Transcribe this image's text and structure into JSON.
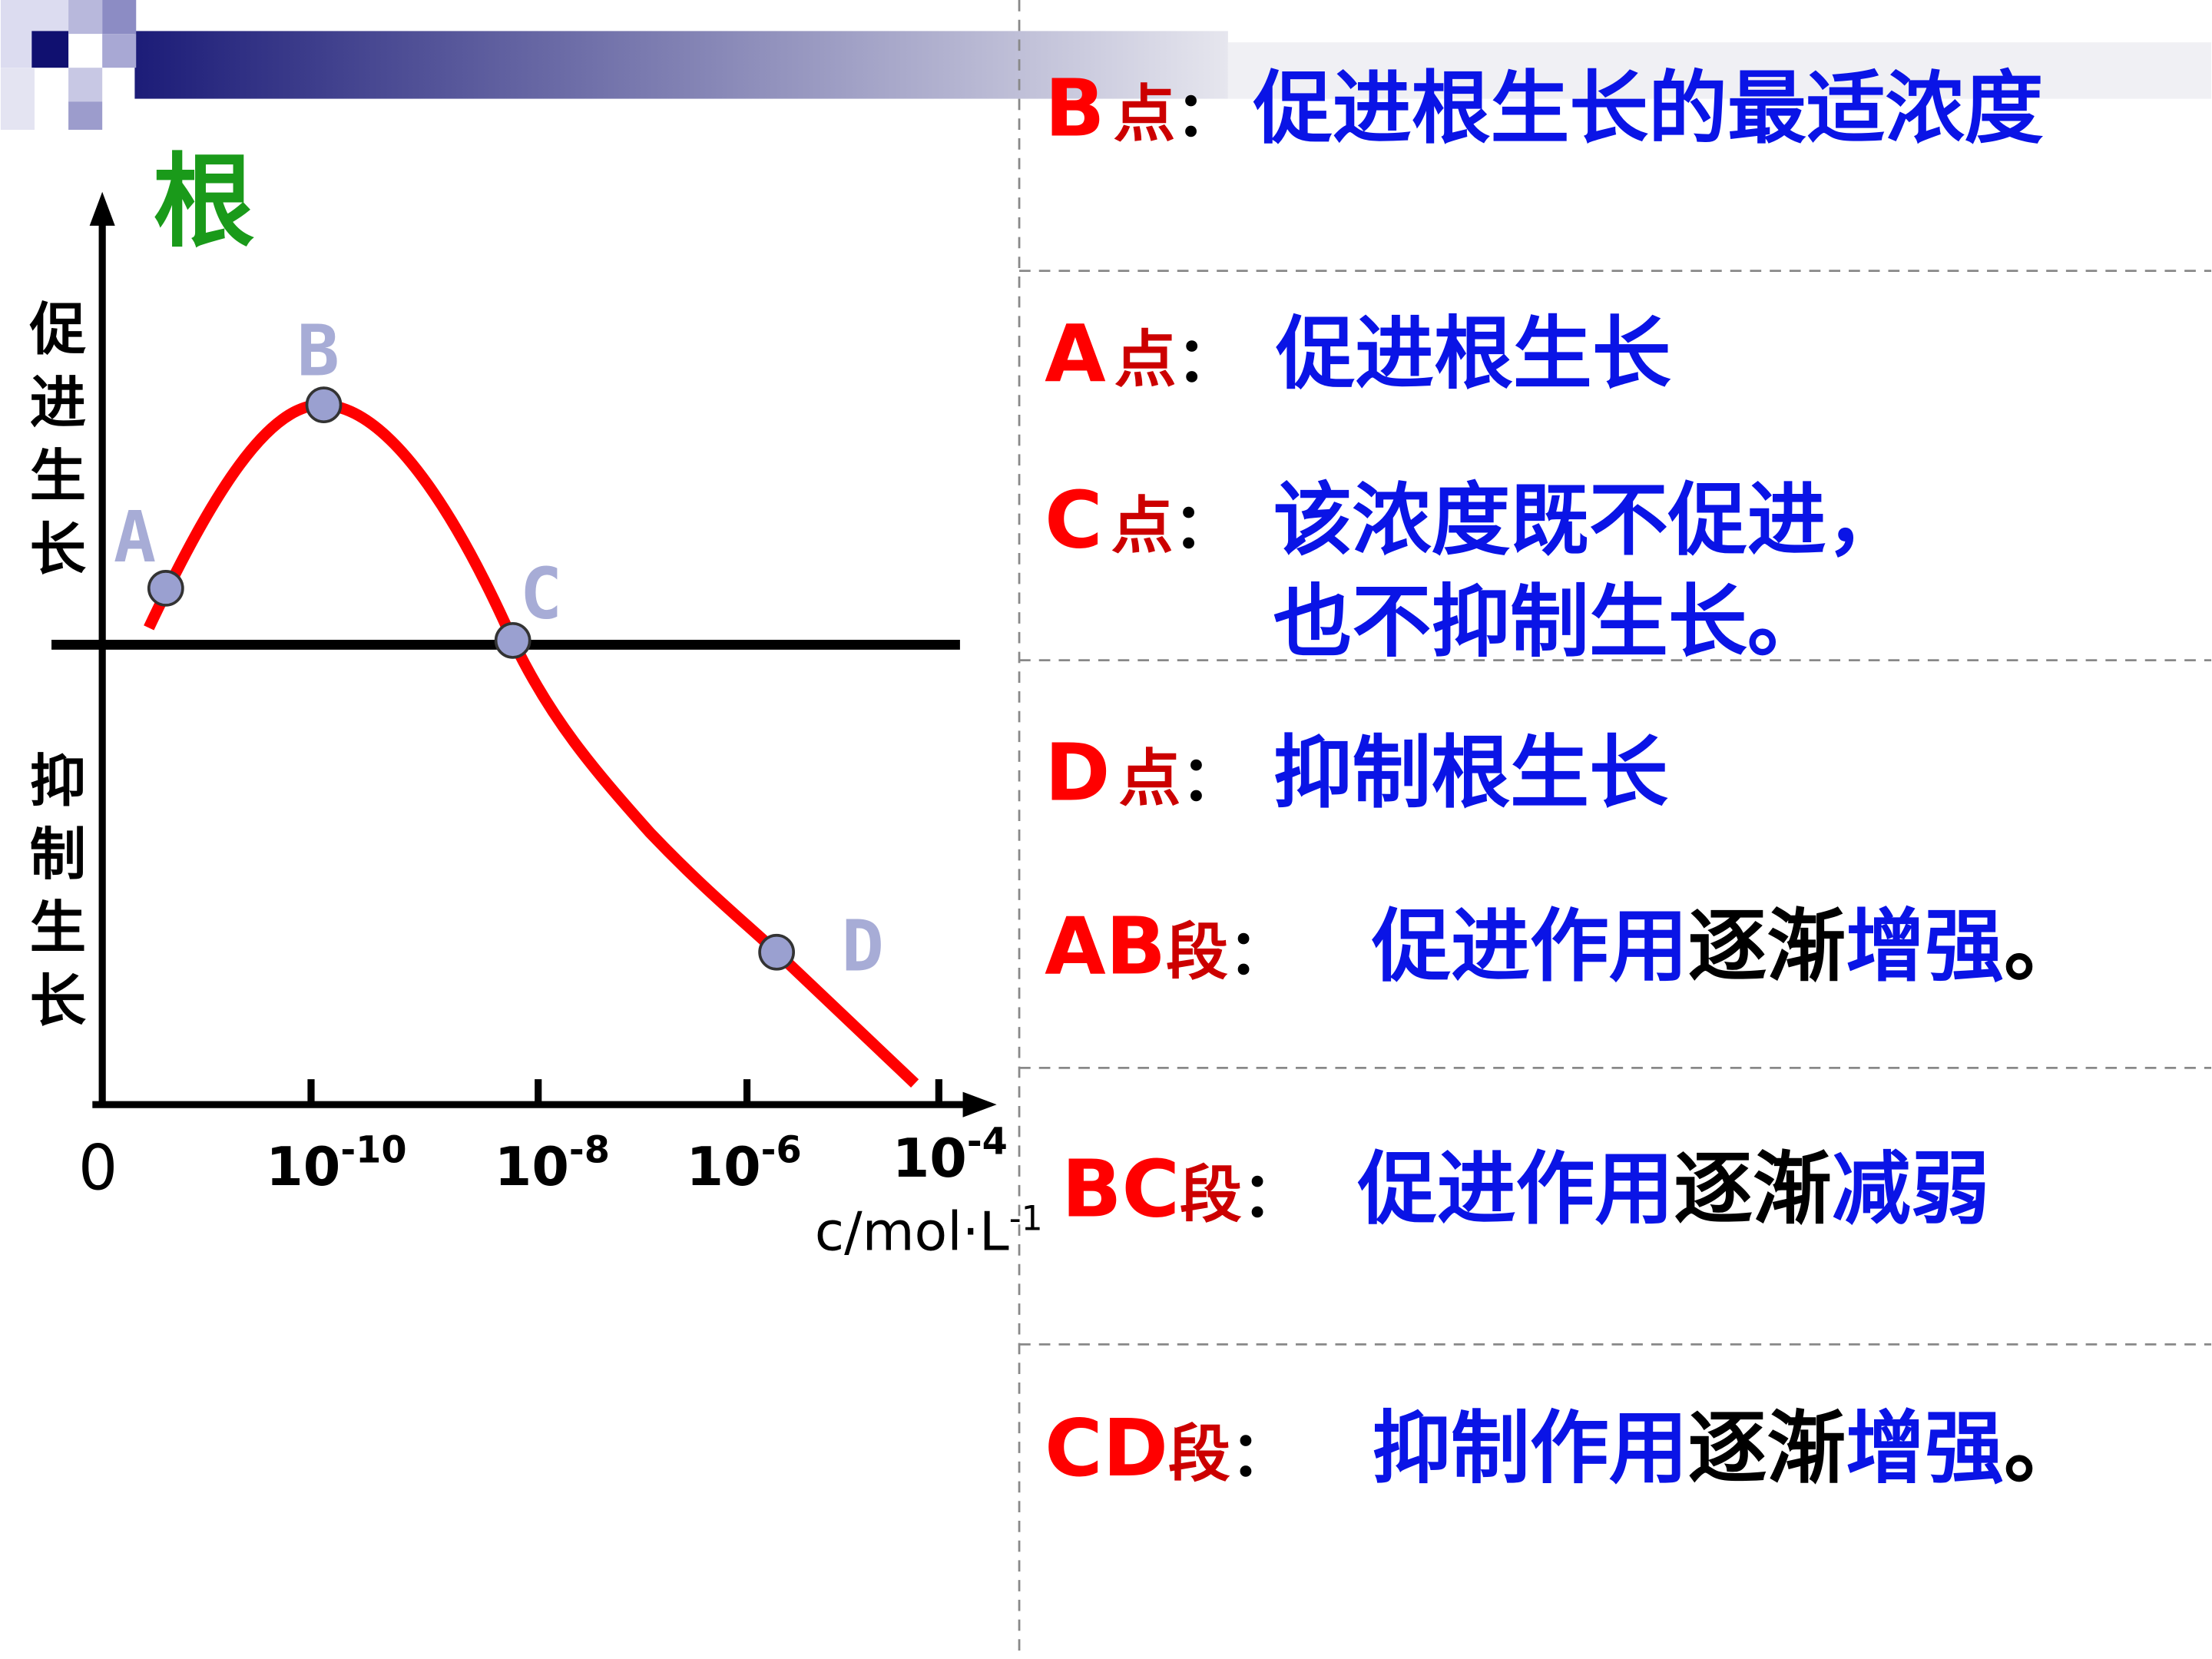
{
  "header": {
    "title": "根"
  },
  "diagram": {
    "y_axis_labels": [
      "促进生长",
      "抑制生长"
    ],
    "points": [
      "A",
      "B",
      "C",
      "D"
    ],
    "x_origin": "0",
    "x_ticks": [
      {
        "base": "10",
        "exp": "-10"
      },
      {
        "base": "10",
        "exp": "-8"
      },
      {
        "base": "10",
        "exp": "-6"
      },
      {
        "base": "10",
        "exp": "-4"
      }
    ],
    "x_unit": {
      "base": "c/mol·L",
      "exp": "-1"
    }
  },
  "notes": [
    {
      "label": "B",
      "kind": "点",
      "colon": "：",
      "parts": [
        "促进根生长的最适浓度"
      ]
    },
    {
      "label": "A",
      "kind": "点",
      "colon": "：",
      "parts": [
        "促进根生长"
      ]
    },
    {
      "label": "C",
      "kind": "点",
      "colon": "：",
      "parts": [
        "该浓度既不促进，",
        "也不抑制生长。"
      ]
    },
    {
      "label": "D",
      "kind": "点",
      "colon": "：",
      "parts": [
        "抑制根生长"
      ]
    },
    {
      "label": "AB",
      "kind": "段",
      "colon": "：",
      "parts": [
        "促进作用",
        "逐渐",
        "增强",
        "。"
      ]
    },
    {
      "label": "BC",
      "kind": "段",
      "colon": "：",
      "parts": [
        "促进作用",
        "逐渐",
        "减弱"
      ]
    },
    {
      "label": "CD",
      "kind": "段",
      "colon": "：",
      "parts": [
        "抑制作用",
        "逐渐",
        "增强",
        "。"
      ]
    }
  ]
}
